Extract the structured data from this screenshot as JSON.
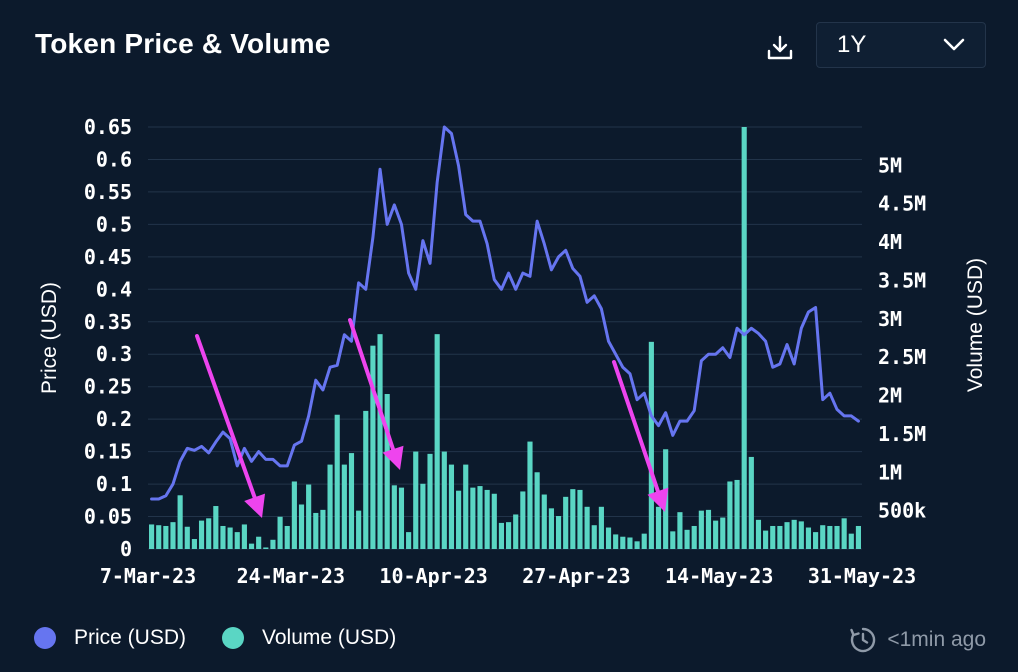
{
  "header": {
    "title": "Token Price & Volume",
    "download_icon": "download-icon",
    "range": {
      "selected": "1Y",
      "icon": "chevron-down-icon"
    }
  },
  "legend": {
    "price_label": "Price (USD)",
    "volume_label": "Volume (USD)"
  },
  "footer": {
    "updated_text": "<1min ago",
    "updated_icon": "refresh-clock-icon"
  },
  "colors": {
    "background": "#0c1a2c",
    "price": "#6675f0",
    "volume": "#5ad6c4",
    "arrow": "#ee44ee",
    "grid": "#22344a"
  },
  "chart_data": {
    "type": "bar+line",
    "title": "Token Price & Volume",
    "xlabel": "",
    "ylabel": "Price (USD)",
    "y2label": "Volume (USD)",
    "ylim": [
      0,
      0.65
    ],
    "y2lim": [
      0,
      5500000
    ],
    "grid": true,
    "legend_position": "bottom-left",
    "x_ticks": [
      "7-Mar-23",
      "24-Mar-23",
      "10-Apr-23",
      "27-Apr-23",
      "14-May-23",
      "31-May-23"
    ],
    "y_ticks": [
      "0",
      "0.05",
      "0.1",
      "0.15",
      "0.2",
      "0.25",
      "0.3",
      "0.35",
      "0.4",
      "0.45",
      "0.5",
      "0.55",
      "0.6",
      "0.65"
    ],
    "y2_ticks": [
      "500k",
      "1M",
      "1.5M",
      "2M",
      "2.5M",
      "3M",
      "3.5M",
      "4M",
      "4.5M",
      "5M"
    ],
    "series": [
      {
        "name": "Price (USD)",
        "type": "line",
        "values": [
          0.077,
          0.077,
          0.082,
          0.1,
          0.135,
          0.155,
          0.152,
          0.158,
          0.148,
          0.165,
          0.18,
          0.17,
          0.128,
          0.155,
          0.135,
          0.15,
          0.138,
          0.138,
          0.128,
          0.128,
          0.16,
          0.166,
          0.205,
          0.26,
          0.245,
          0.28,
          0.283,
          0.33,
          0.32,
          0.41,
          0.4,
          0.48,
          0.585,
          0.5,
          0.53,
          0.5,
          0.425,
          0.4,
          0.475,
          0.44,
          0.565,
          0.65,
          0.64,
          0.59,
          0.515,
          0.505,
          0.505,
          0.47,
          0.415,
          0.4,
          0.425,
          0.4,
          0.425,
          0.42,
          0.505,
          0.47,
          0.43,
          0.45,
          0.46,
          0.432,
          0.42,
          0.38,
          0.39,
          0.37,
          0.32,
          0.3,
          0.28,
          0.27,
          0.23,
          0.24,
          0.205,
          0.19,
          0.21,
          0.175,
          0.197,
          0.197,
          0.213,
          0.29,
          0.3,
          0.3,
          0.31,
          0.295,
          0.34,
          0.33,
          0.34,
          0.332,
          0.32,
          0.28,
          0.285,
          0.315,
          0.285,
          0.34,
          0.365,
          0.372,
          0.23,
          0.24,
          0.215,
          0.205,
          0.205,
          0.197
        ]
      },
      {
        "name": "Volume (USD)",
        "type": "bar",
        "values": [
          320000,
          310000,
          300000,
          350000,
          700000,
          290000,
          130000,
          370000,
          400000,
          560000,
          300000,
          280000,
          220000,
          320000,
          70000,
          160000,
          20000,
          120000,
          420000,
          300000,
          880000,
          580000,
          840000,
          470000,
          510000,
          1100000,
          1750000,
          1100000,
          1250000,
          500000,
          1800000,
          2650000,
          2800000,
          2020000,
          830000,
          800000,
          220000,
          1270000,
          850000,
          1240000,
          2800000,
          1270000,
          1100000,
          760000,
          1100000,
          800000,
          820000,
          770000,
          720000,
          340000,
          350000,
          450000,
          750000,
          1400000,
          1000000,
          710000,
          530000,
          430000,
          680000,
          780000,
          770000,
          550000,
          310000,
          550000,
          280000,
          190000,
          160000,
          150000,
          100000,
          200000,
          2700000,
          550000,
          1300000,
          230000,
          480000,
          250000,
          300000,
          500000,
          510000,
          370000,
          410000,
          880000,
          900000,
          5500000,
          1200000,
          380000,
          240000,
          300000,
          300000,
          350000,
          380000,
          360000,
          280000,
          220000,
          310000,
          300000,
          300000,
          400000,
          200000,
          300000
        ]
      }
    ],
    "annotations": [
      {
        "type": "arrow",
        "color": "#ee44ee",
        "description": "arrow pointing down near 24-Mar-23"
      },
      {
        "type": "arrow",
        "color": "#ee44ee",
        "description": "arrow pointing down near 10-Apr-23"
      },
      {
        "type": "arrow",
        "color": "#ee44ee",
        "description": "arrow pointing down near 14-May-23"
      }
    ]
  }
}
